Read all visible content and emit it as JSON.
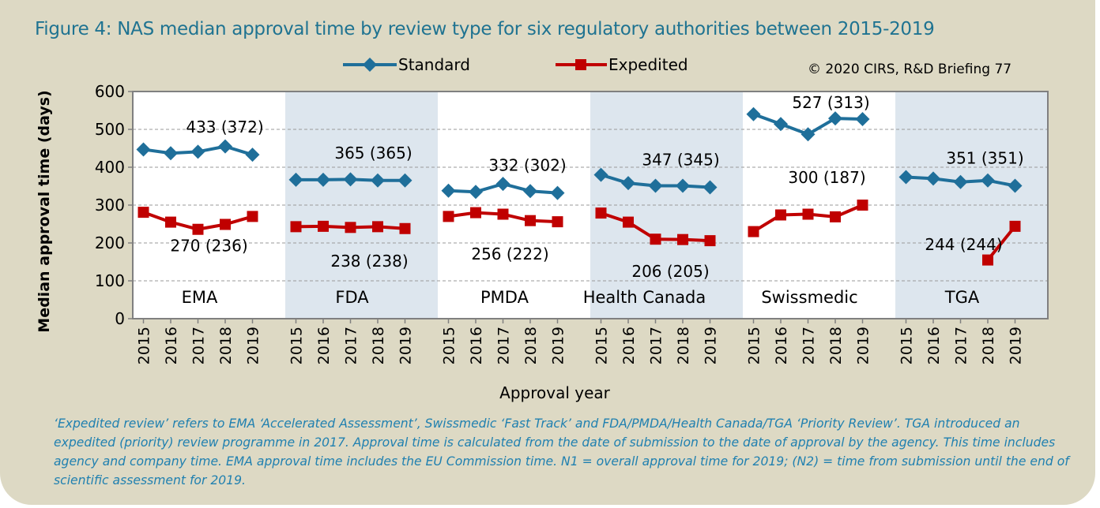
{
  "chart_data": {
    "type": "line",
    "title": "Figure 4: NAS median approval time by review type for six regulatory authorities between 2015-2019",
    "copyright": "© 2020 CIRS, R&D Briefing 77",
    "xlabel": "Approval year",
    "ylabel": "Median approval time (days)",
    "ylim": [
      0,
      600
    ],
    "yticks": [
      0,
      100,
      200,
      300,
      400,
      500,
      600
    ],
    "grid": "horizontal dashed",
    "legend_position": "top-center",
    "years": [
      "2015",
      "2016",
      "2017",
      "2018",
      "2019"
    ],
    "series_styles": [
      {
        "name": "Standard",
        "color": "#1f6f9a",
        "marker": "diamond"
      },
      {
        "name": "Expedited",
        "color": "#c00000",
        "marker": "square"
      }
    ],
    "groups": [
      {
        "name": "EMA",
        "shaded": false,
        "standard": [
          447,
          437,
          441,
          455,
          433
        ],
        "expedited": [
          281,
          255,
          236,
          249,
          270
        ],
        "standard_label": "433 (372)",
        "expedited_label": "270 (236)"
      },
      {
        "name": "FDA",
        "shaded": true,
        "standard": [
          367,
          367,
          368,
          365,
          365
        ],
        "expedited": [
          243,
          244,
          241,
          243,
          238
        ],
        "standard_label": "365 (365)",
        "expedited_label": "238 (238)"
      },
      {
        "name": "PMDA",
        "shaded": false,
        "standard": [
          338,
          335,
          356,
          337,
          332
        ],
        "expedited": [
          270,
          280,
          276,
          259,
          256
        ],
        "standard_label": "332 (302)",
        "expedited_label": "256 (222)"
      },
      {
        "name": "Health Canada",
        "shaded": true,
        "standard": [
          380,
          358,
          351,
          351,
          347
        ],
        "expedited": [
          279,
          255,
          210,
          209,
          206
        ],
        "standard_label": "347 (345)",
        "expedited_label": "206 (205)"
      },
      {
        "name": "Swissmedic",
        "shaded": false,
        "standard": [
          540,
          514,
          487,
          529,
          527
        ],
        "expedited": [
          230,
          274,
          276,
          269,
          300
        ],
        "standard_label": "527 (313)",
        "expedited_label": "300 (187)"
      },
      {
        "name": "TGA",
        "shaded": true,
        "standard": [
          374,
          370,
          361,
          365,
          351
        ],
        "expedited": [
          null,
          null,
          null,
          155,
          244
        ],
        "standard_label": "351 (351)",
        "expedited_label": "244 (244)"
      }
    ]
  },
  "footnote": "‘Expedited review’ refers to EMA ‘Accelerated Assessment’, Swissmedic ‘Fast Track’ and FDA/PMDA/Health Canada/TGA ‘Priority Review’. TGA introduced an expedited (priority) review programme in 2017. Approval time is calculated from the date of submission to the date of approval by the agency. This time includes agency and company time. EMA approval time includes the EU Commission time. N1 = overall approval time for 2019; (N2) = time from submission until the end of scientific assessment for 2019."
}
